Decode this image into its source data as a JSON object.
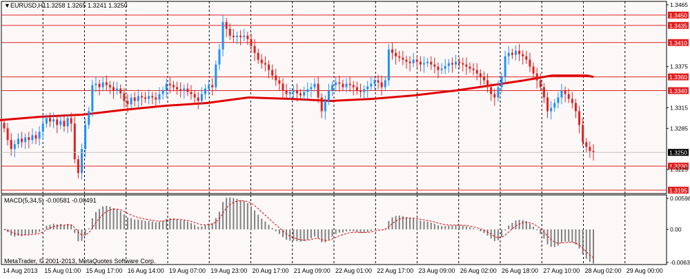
{
  "header": {
    "symbol": "EURUSD,H1",
    "ohlc": "1.3258 1.3265 1.3241 1.3250"
  },
  "macd": {
    "title": "MACD(5,34,5) -0.00581 -0.00491",
    "axis_labels": [
      "0.00598",
      "0.00",
      "-0.00637"
    ]
  },
  "copyright": "MetaTrader, © 2001-2013, MetaQuotes Software Corp.",
  "colors": {
    "background": "#fdf8f8",
    "bull_candle": "#1e90ff",
    "bear_candle": "#e02020",
    "level_line": "#e02020",
    "moving_average": "#e00000",
    "macd_histogram": "#808080",
    "macd_signal": "#e00000",
    "grid": "#000000"
  },
  "chart_data": {
    "type": "candlestick",
    "instrument": "EURUSD",
    "timeframe": "H1",
    "last_bar": {
      "open": 1.3258,
      "high": 1.3265,
      "low": 1.3241,
      "close": 1.325
    },
    "y_ticks": [
      "1.3465",
      "1.3375",
      "1.3315",
      "1.3285",
      "1.3225"
    ],
    "current_price": "1.3250",
    "ylim": [
      1.319,
      1.347
    ],
    "horizontal_levels": [
      "1.3450",
      "1.3435",
      "1.3410",
      "1.3360",
      "1.3340",
      "1.3230",
      "1.3195"
    ],
    "x_labels": [
      "14 Aug 2013",
      "15 Aug 01:00",
      "15 Aug 17:00",
      "16 Aug 14:00",
      "19 Aug 07:00",
      "19 Aug 23:00",
      "20 Aug 17:00",
      "21 Aug 09:00",
      "22 Aug 01:00",
      "22 Aug 17:00",
      "23 Aug 09:00",
      "26 Aug 02:00",
      "26 Aug 18:00",
      "27 Aug 10:00",
      "28 Aug 02:00",
      "29 Aug 00:00"
    ],
    "moving_average_points": [
      [
        0,
        1.3297
      ],
      [
        60,
        1.3302
      ],
      [
        120,
        1.3305
      ],
      [
        180,
        1.3312
      ],
      [
        240,
        1.3318
      ],
      [
        300,
        1.3322
      ],
      [
        360,
        1.333
      ],
      [
        420,
        1.3328
      ],
      [
        480,
        1.3325
      ],
      [
        540,
        1.3328
      ],
      [
        600,
        1.3333
      ],
      [
        660,
        1.334
      ],
      [
        700,
        1.3346
      ],
      [
        760,
        1.3355
      ],
      [
        800,
        1.3362
      ],
      [
        850,
        1.3362
      ],
      [
        860,
        1.336
      ]
    ],
    "candles_close": [
      1.3285,
      1.3268,
      1.3255,
      1.3262,
      1.327,
      1.3265,
      1.3272,
      1.3268,
      1.3275,
      1.327,
      1.328,
      1.3292,
      1.33,
      1.3295,
      1.3298,
      1.329,
      1.3296,
      1.3288,
      1.33,
      1.3292,
      1.324,
      1.322,
      1.3255,
      1.329,
      1.331,
      1.3348,
      1.335,
      1.3345,
      1.3352,
      1.3348,
      1.3345,
      1.334,
      1.3343,
      1.3336,
      1.3325,
      1.332,
      1.333,
      1.3325,
      1.3332,
      1.333,
      1.3328,
      1.3332,
      1.333,
      1.3327,
      1.3335,
      1.334,
      1.335,
      1.3348,
      1.3345,
      1.3342,
      1.334,
      1.3343,
      1.3338,
      1.3335,
      1.333,
      1.3325,
      1.3335,
      1.3343,
      1.3348,
      1.3345,
      1.3378,
      1.34,
      1.344,
      1.343,
      1.342,
      1.3418,
      1.342,
      1.3418,
      1.342,
      1.3415,
      1.3405,
      1.3395,
      1.3385,
      1.338,
      1.3378,
      1.337,
      1.3362,
      1.3355,
      1.335,
      1.334,
      1.3335,
      1.3338,
      1.334,
      1.3336,
      1.3333,
      1.3338,
      1.3342,
      1.3345,
      1.335,
      1.333,
      1.331,
      1.3325,
      1.334,
      1.3348,
      1.3352,
      1.335,
      1.3345,
      1.335,
      1.3348,
      1.3345,
      1.334,
      1.3338,
      1.3342,
      1.3346,
      1.335,
      1.3355,
      1.3352,
      1.3345,
      1.3355,
      1.34,
      1.3395,
      1.339,
      1.3388,
      1.3385,
      1.3382,
      1.338,
      1.3385,
      1.3382,
      1.3378,
      1.338,
      1.3382,
      1.3378,
      1.3375,
      1.337,
      1.3372,
      1.3376,
      1.338,
      1.3378,
      1.3382,
      1.338,
      1.3378,
      1.3375,
      1.3372,
      1.337,
      1.3365,
      1.336,
      1.3355,
      1.3345,
      1.3335,
      1.333,
      1.3345,
      1.336,
      1.339,
      1.3395,
      1.3392,
      1.3398,
      1.3393,
      1.339,
      1.3385,
      1.3375,
      1.3365,
      1.3355,
      1.3345,
      1.333,
      1.331,
      1.3315,
      1.3322,
      1.333,
      1.334,
      1.3335,
      1.3328,
      1.3322,
      1.331,
      1.329,
      1.3265,
      1.3258,
      1.3252,
      1.325
    ]
  }
}
